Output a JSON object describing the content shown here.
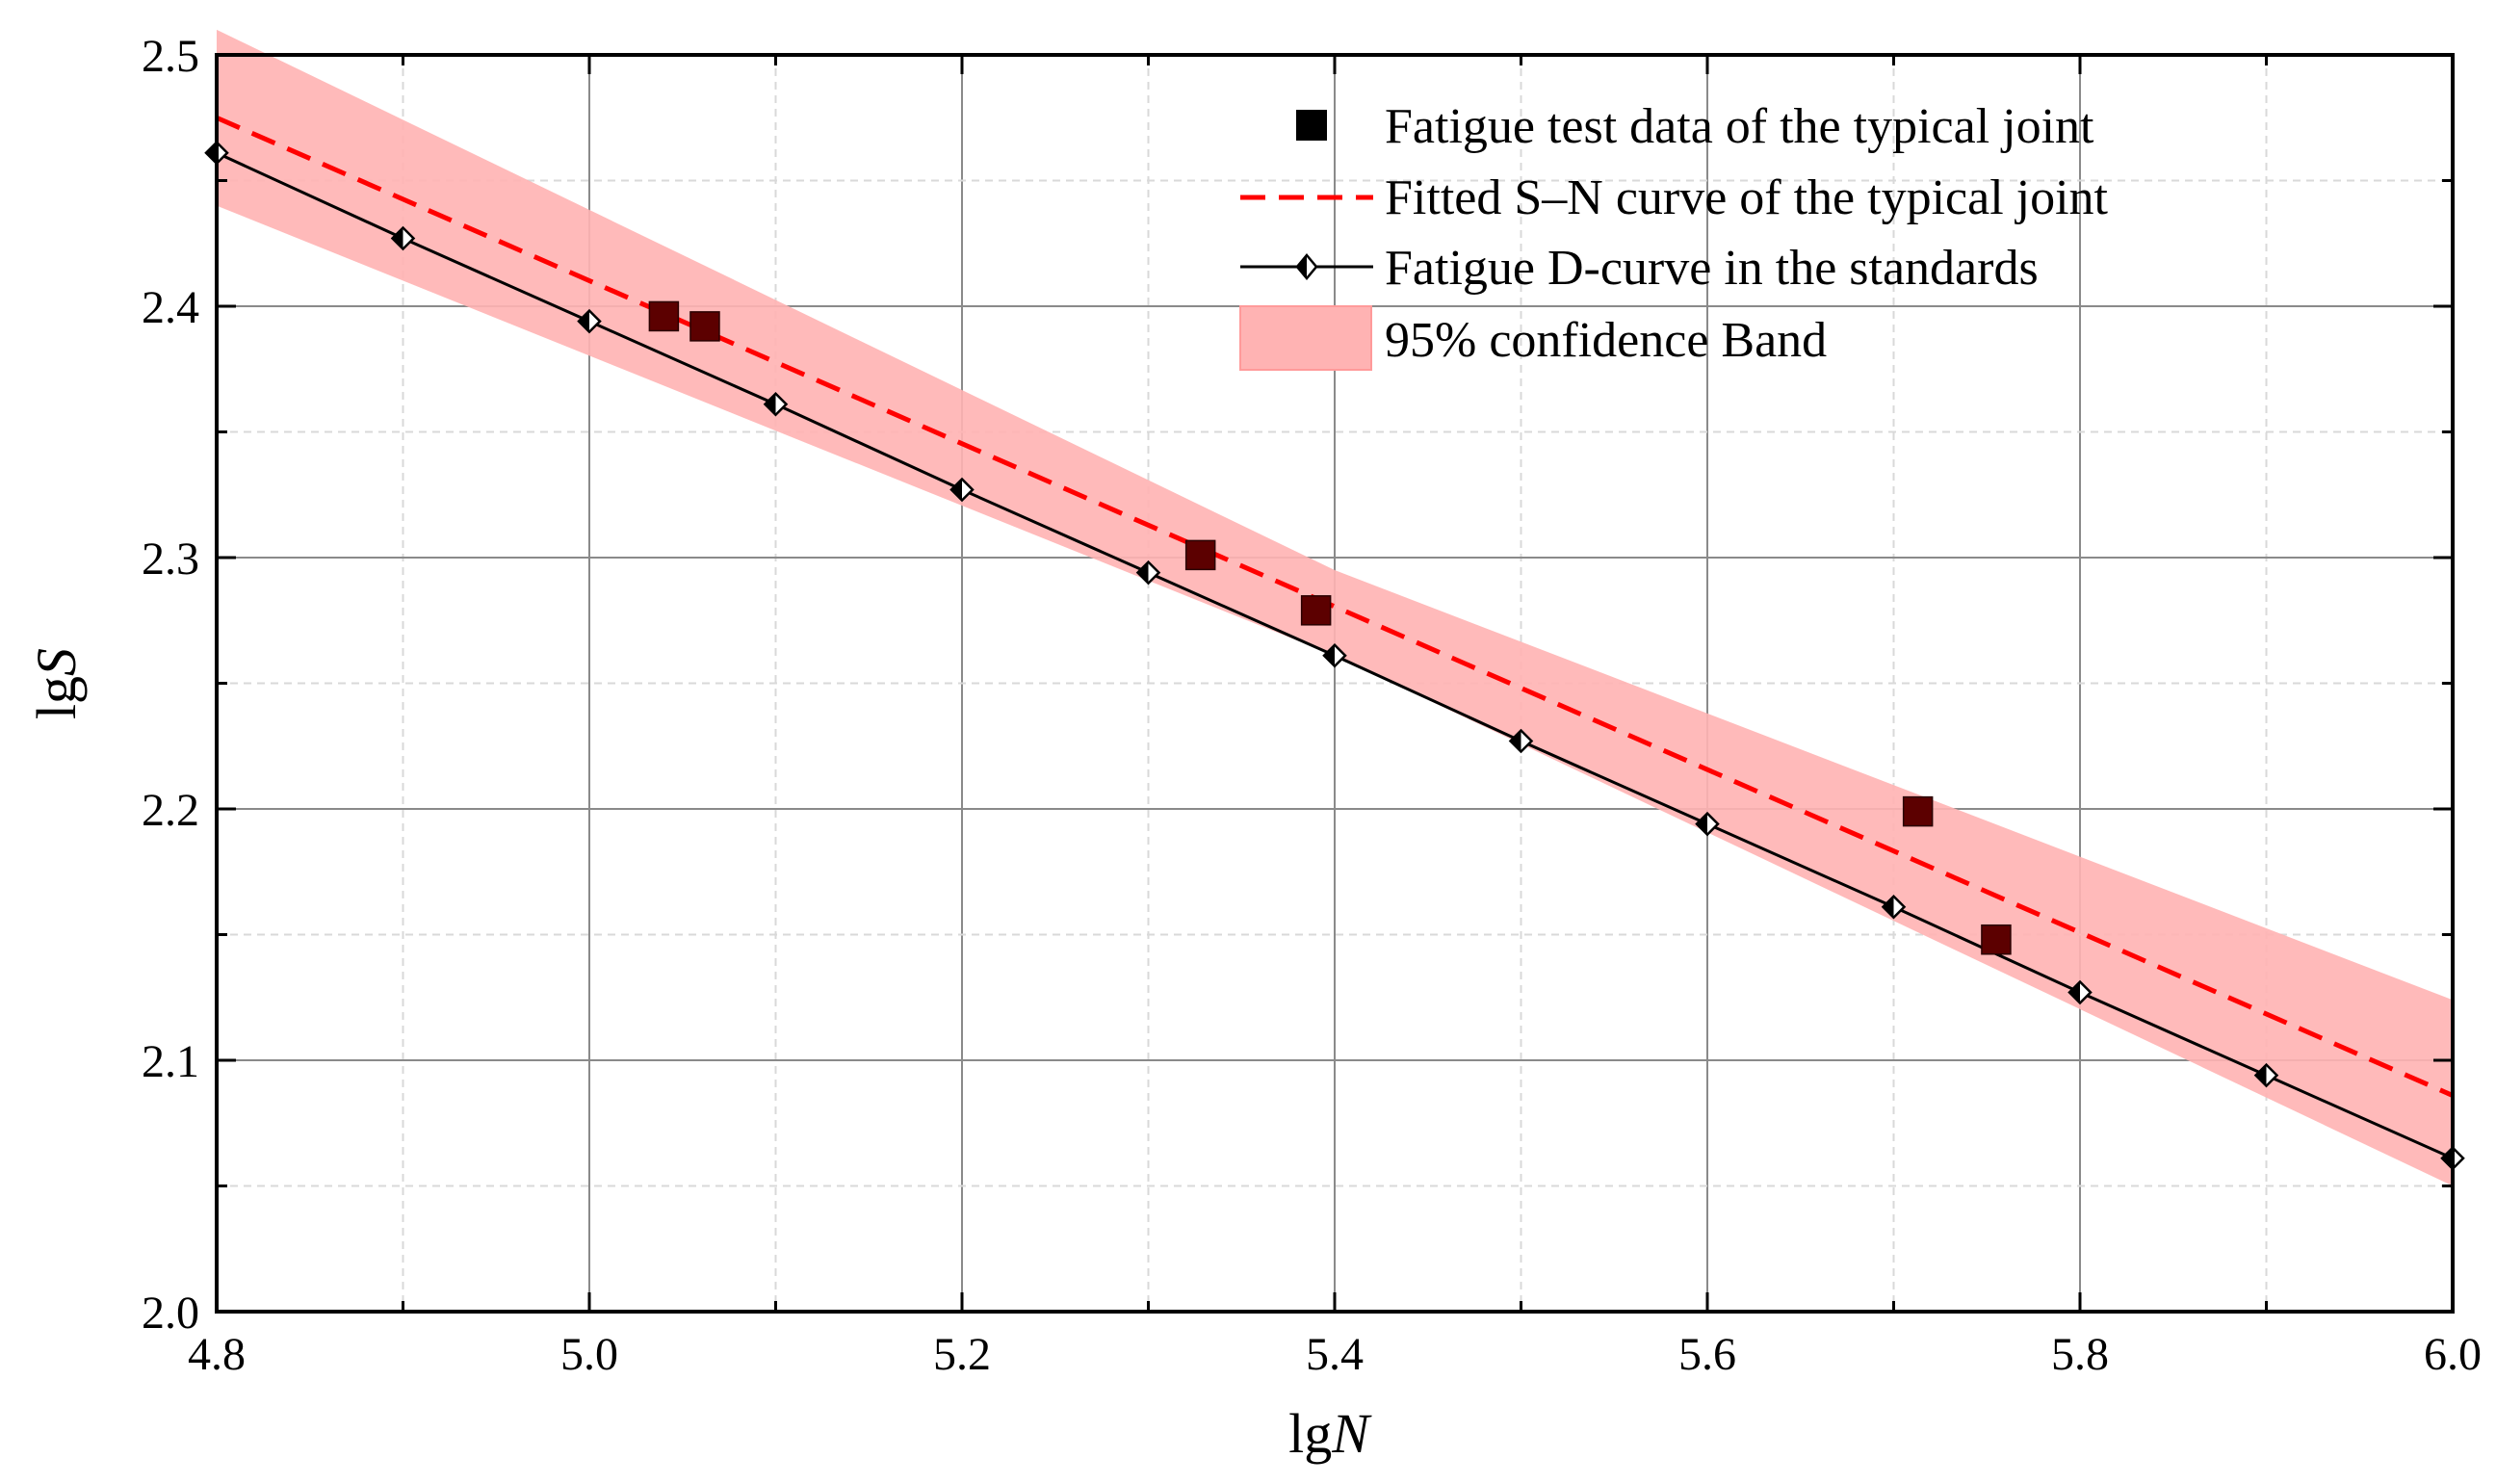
{
  "chart_data": {
    "type": "line",
    "xlabel": {
      "prefix": "lg",
      "var": "N"
    },
    "ylabel": {
      "prefix": "lg",
      "var": "S"
    },
    "xlim": [
      4.8,
      6.0
    ],
    "ylim": [
      2.0,
      2.5
    ],
    "x_ticks": [
      "4.8",
      "5.0",
      "5.2",
      "5.4",
      "5.6",
      "5.8",
      "6.0"
    ],
    "y_ticks": [
      "2.0",
      "2.1",
      "2.2",
      "2.3",
      "2.4",
      "2.5"
    ],
    "grid": true,
    "legend_position": "top-right",
    "series": [
      {
        "name": "Fatigue test data of the typical joint",
        "kind": "scatter",
        "color": "#5c0000",
        "points": [
          [
            5.04,
            2.396
          ],
          [
            5.062,
            2.392
          ],
          [
            5.328,
            2.301
          ],
          [
            5.39,
            2.279
          ],
          [
            5.713,
            2.199
          ],
          [
            5.755,
            2.148
          ]
        ]
      },
      {
        "name": "Fitted S–N curve of the typical joint",
        "kind": "line",
        "color": "#ff0000",
        "points": [
          [
            4.8,
            2.475
          ],
          [
            6.0,
            2.086
          ]
        ]
      },
      {
        "name": "Fatigue D-curve in the standards",
        "kind": "line",
        "color": "#000000",
        "points": [
          [
            4.8,
            2.461
          ],
          [
            4.9,
            2.427
          ],
          [
            5.0,
            2.394
          ],
          [
            5.1,
            2.361
          ],
          [
            5.2,
            2.327
          ],
          [
            5.3,
            2.294
          ],
          [
            5.4,
            2.261
          ],
          [
            5.5,
            2.227
          ],
          [
            5.6,
            2.194
          ],
          [
            5.7,
            2.161
          ],
          [
            5.8,
            2.127
          ],
          [
            5.9,
            2.094
          ],
          [
            6.0,
            2.061
          ]
        ]
      },
      {
        "name": "95% confidence Band",
        "kind": "band",
        "color": "#ffb3b3",
        "upper": [
          [
            4.8,
            2.51
          ],
          [
            5.4,
            2.295
          ],
          [
            6.0,
            2.124
          ]
        ],
        "lower": [
          [
            4.8,
            2.44
          ],
          [
            5.4,
            2.261
          ],
          [
            6.0,
            2.05
          ]
        ]
      }
    ]
  }
}
